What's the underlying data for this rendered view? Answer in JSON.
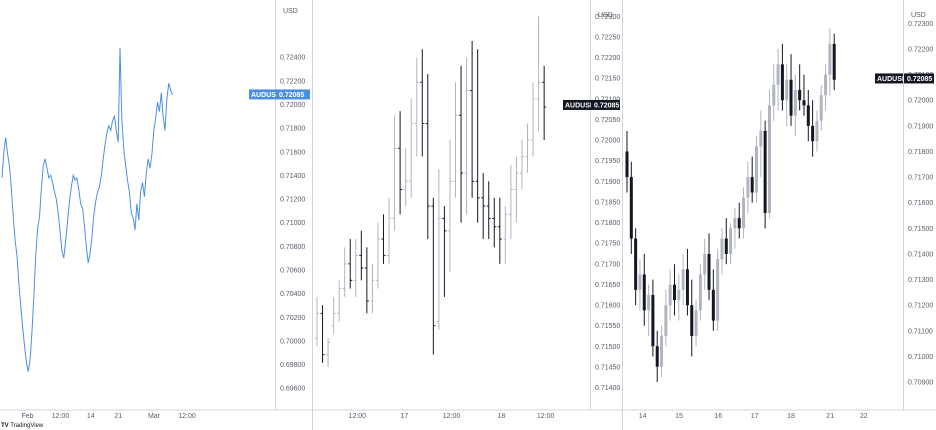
{
  "brand": {
    "logo_text": "TradingView"
  },
  "colors": {
    "blue": "#4a90e2",
    "dark": "#131722",
    "gray": "#b2b5be",
    "axis": "#555b66",
    "grid_line": "#d1d4dc"
  },
  "chart_data": [
    {
      "type": "line",
      "symbol": "AUDUSD",
      "currency": "USD",
      "last_price_label": "0.72085",
      "ylim": [
        0.695,
        0.7285
      ],
      "y_ticks": [
        "0.72400",
        "0.72200",
        "0.72000",
        "0.71800",
        "0.71600",
        "0.71400",
        "0.71200",
        "0.71000",
        "0.70800",
        "0.70600",
        "0.70400",
        "0.70200",
        "0.70000",
        "0.69800",
        "0.69600"
      ],
      "x_labels": [
        [
          "Feb",
          0.1
        ],
        [
          "12:00",
          0.22
        ],
        [
          "14",
          0.33
        ],
        [
          "21",
          0.43
        ],
        [
          "Mar",
          0.56
        ],
        [
          "12:00",
          0.68
        ]
      ],
      "values": [
        0.7138,
        0.716,
        0.7172,
        0.7158,
        0.7148,
        0.7128,
        0.7106,
        0.7085,
        0.7072,
        0.7048,
        0.703,
        0.7012,
        0.6996,
        0.6982,
        0.6974,
        0.6984,
        0.7008,
        0.7038,
        0.7072,
        0.7095,
        0.7105,
        0.7128,
        0.7148,
        0.7154,
        0.7146,
        0.7138,
        0.714,
        0.7134,
        0.7126,
        0.712,
        0.7108,
        0.7092,
        0.7076,
        0.707,
        0.7085,
        0.7102,
        0.7118,
        0.713,
        0.714,
        0.7136,
        0.7138,
        0.7128,
        0.7116,
        0.7112,
        0.7098,
        0.708,
        0.7066,
        0.7074,
        0.7088,
        0.7106,
        0.7118,
        0.7126,
        0.713,
        0.714,
        0.7154,
        0.7166,
        0.7176,
        0.7182,
        0.7178,
        0.7186,
        0.719,
        0.7178,
        0.7168,
        0.7248,
        0.7186,
        0.7162,
        0.7148,
        0.7136,
        0.7126,
        0.7108,
        0.7104,
        0.7094,
        0.7116,
        0.7102,
        0.7126,
        0.7134,
        0.7122,
        0.7142,
        0.7154,
        0.7146,
        0.7158,
        0.7178,
        0.7188,
        0.7202,
        0.7194,
        0.721,
        0.719,
        0.7178,
        0.7205,
        0.7218,
        0.7212,
        0.7208
      ]
    },
    {
      "type": "ohlc",
      "symbol": "AUDUSD",
      "currency": "USD",
      "last_price_label": "0.72085",
      "ylim": [
        0.7137,
        0.7232
      ],
      "y_ticks": [
        "0.72300",
        "0.72250",
        "0.72200",
        "0.72150",
        "0.72100",
        "0.72050",
        "0.72000",
        "0.71950",
        "0.71900",
        "0.71850",
        "0.71800",
        "0.71750",
        "0.71700",
        "0.71650",
        "0.71600",
        "0.71550",
        "0.71500",
        "0.71450",
        "0.71400"
      ],
      "x_labels": [
        [
          "12:00",
          0.16
        ],
        [
          "17",
          0.33
        ],
        [
          "12:00",
          0.5
        ],
        [
          "18",
          0.68
        ],
        [
          "12:00",
          0.84
        ]
      ],
      "bars": [
        [
          0.7152,
          0.7162,
          0.715,
          0.7158
        ],
        [
          0.7158,
          0.716,
          0.7146,
          0.7148
        ],
        [
          0.7148,
          0.7152,
          0.7145,
          0.7151
        ],
        [
          0.7155,
          0.7162,
          0.7153,
          0.7158
        ],
        [
          0.7158,
          0.7166,
          0.7156,
          0.7164
        ],
        [
          0.7164,
          0.7174,
          0.7162,
          0.717
        ],
        [
          0.717,
          0.7176,
          0.7164,
          0.7166
        ],
        [
          0.7166,
          0.7176,
          0.7162,
          0.7172
        ],
        [
          0.7172,
          0.7178,
          0.7166,
          0.7169
        ],
        [
          0.7169,
          0.7174,
          0.7158,
          0.7161
        ],
        [
          0.7161,
          0.717,
          0.7158,
          0.7166
        ],
        [
          0.7166,
          0.718,
          0.7164,
          0.7176
        ],
        [
          0.7176,
          0.7182,
          0.717,
          0.7172
        ],
        [
          0.7172,
          0.7186,
          0.717,
          0.7181
        ],
        [
          0.7181,
          0.7206,
          0.7178,
          0.7198
        ],
        [
          0.7198,
          0.7207,
          0.7182,
          0.7188
        ],
        [
          0.7188,
          0.7198,
          0.7184,
          0.719
        ],
        [
          0.719,
          0.721,
          0.7186,
          0.7204
        ],
        [
          0.7204,
          0.722,
          0.7196,
          0.7214
        ],
        [
          0.7214,
          0.7222,
          0.7196,
          0.7204
        ],
        [
          0.7204,
          0.7216,
          0.7176,
          0.7184
        ],
        [
          0.7184,
          0.7186,
          0.7148,
          0.7155
        ],
        [
          0.7156,
          0.7193,
          0.7154,
          0.7181
        ],
        [
          0.7181,
          0.7184,
          0.7162,
          0.7178
        ],
        [
          0.7178,
          0.72,
          0.7168,
          0.719
        ],
        [
          0.719,
          0.7214,
          0.7186,
          0.7206
        ],
        [
          0.7206,
          0.7218,
          0.718,
          0.7192
        ],
        [
          0.7192,
          0.722,
          0.7182,
          0.7212
        ],
        [
          0.7212,
          0.7224,
          0.7186,
          0.719
        ],
        [
          0.719,
          0.7222,
          0.718,
          0.7186
        ],
        [
          0.7186,
          0.7192,
          0.7176,
          0.7184
        ],
        [
          0.7184,
          0.719,
          0.7176,
          0.7181
        ],
        [
          0.7181,
          0.7186,
          0.7174,
          0.7179
        ],
        [
          0.7179,
          0.7186,
          0.717,
          0.7176
        ],
        [
          0.7176,
          0.7184,
          0.717,
          0.7182
        ],
        [
          0.7182,
          0.7194,
          0.7176,
          0.7188
        ],
        [
          0.7188,
          0.7196,
          0.718,
          0.7192
        ],
        [
          0.7192,
          0.72,
          0.7188,
          0.7196
        ],
        [
          0.7196,
          0.7204,
          0.7192,
          0.72
        ],
        [
          0.72,
          0.7214,
          0.7196,
          0.721
        ],
        [
          0.721,
          0.723,
          0.7202,
          0.7214
        ],
        [
          0.7214,
          0.7218,
          0.72,
          0.7208
        ]
      ]
    },
    {
      "type": "candlestick",
      "symbol": "AUDUSD",
      "currency": "USD",
      "last_price_label": "0.72085",
      "ylim": [
        0.7083,
        0.7236
      ],
      "y_ticks": [
        "0.72300",
        "0.72200",
        "0.72100",
        "0.72000",
        "0.71900",
        "0.71800",
        "0.71700",
        "0.71600",
        "0.71500",
        "0.71400",
        "0.71300",
        "0.71200",
        "0.71100",
        "0.71000",
        "0.70900"
      ],
      "x_labels": [
        [
          "14",
          0.07
        ],
        [
          "15",
          0.2
        ],
        [
          "16",
          0.34
        ],
        [
          "17",
          0.47
        ],
        [
          "18",
          0.6
        ],
        [
          "21",
          0.74
        ],
        [
          "22",
          0.86
        ]
      ],
      "candles": [
        [
          0.718,
          0.7188,
          0.7164,
          0.717
        ],
        [
          0.717,
          0.7176,
          0.714,
          0.7146
        ],
        [
          0.7146,
          0.715,
          0.712,
          0.7126
        ],
        [
          0.7126,
          0.7138,
          0.7118,
          0.7132
        ],
        [
          0.7132,
          0.714,
          0.7112,
          0.7118
        ],
        [
          0.7118,
          0.7128,
          0.7108,
          0.7124
        ],
        [
          0.7124,
          0.713,
          0.71,
          0.7104
        ],
        [
          0.7104,
          0.711,
          0.709,
          0.7096
        ],
        [
          0.7096,
          0.7112,
          0.7092,
          0.7108
        ],
        [
          0.7108,
          0.7126,
          0.7104,
          0.712
        ],
        [
          0.712,
          0.7134,
          0.7114,
          0.7128
        ],
        [
          0.7128,
          0.7136,
          0.7116,
          0.7122
        ],
        [
          0.7122,
          0.7132,
          0.7114,
          0.7126
        ],
        [
          0.7126,
          0.714,
          0.712,
          0.7134
        ],
        [
          0.7134,
          0.7142,
          0.7116,
          0.712
        ],
        [
          0.712,
          0.713,
          0.71,
          0.7108
        ],
        [
          0.7108,
          0.7122,
          0.7104,
          0.7118
        ],
        [
          0.7118,
          0.7136,
          0.7114,
          0.7132
        ],
        [
          0.7132,
          0.7146,
          0.7126,
          0.714
        ],
        [
          0.714,
          0.7148,
          0.7122,
          0.7126
        ],
        [
          0.7126,
          0.7134,
          0.711,
          0.7114
        ],
        [
          0.7114,
          0.7142,
          0.711,
          0.7138
        ],
        [
          0.7138,
          0.715,
          0.7132,
          0.7146
        ],
        [
          0.7146,
          0.7154,
          0.7136,
          0.714
        ],
        [
          0.714,
          0.7152,
          0.7136,
          0.715
        ],
        [
          0.715,
          0.7158,
          0.7142,
          0.7154
        ],
        [
          0.7154,
          0.716,
          0.7146,
          0.715
        ],
        [
          0.715,
          0.7166,
          0.7146,
          0.7162
        ],
        [
          0.7162,
          0.7176,
          0.7156,
          0.717
        ],
        [
          0.717,
          0.7178,
          0.716,
          0.7164
        ],
        [
          0.7164,
          0.7186,
          0.716,
          0.7182
        ],
        [
          0.7182,
          0.7196,
          0.717,
          0.7188
        ],
        [
          0.7188,
          0.7192,
          0.715,
          0.7156
        ],
        [
          0.7156,
          0.7204,
          0.7154,
          0.7198
        ],
        [
          0.7198,
          0.7214,
          0.7192,
          0.7206
        ],
        [
          0.7206,
          0.722,
          0.7196,
          0.7214
        ],
        [
          0.7214,
          0.7222,
          0.7196,
          0.72
        ],
        [
          0.72,
          0.7214,
          0.719,
          0.7208
        ],
        [
          0.7208,
          0.7218,
          0.719,
          0.7194
        ],
        [
          0.7194,
          0.721,
          0.7186,
          0.7204
        ],
        [
          0.7204,
          0.7214,
          0.7196,
          0.72
        ],
        [
          0.72,
          0.721,
          0.7194,
          0.7198
        ],
        [
          0.7198,
          0.7204,
          0.7184,
          0.719
        ],
        [
          0.719,
          0.72,
          0.7178,
          0.7184
        ],
        [
          0.7184,
          0.7196,
          0.718,
          0.7192
        ],
        [
          0.7192,
          0.7206,
          0.7188,
          0.7202
        ],
        [
          0.7202,
          0.7214,
          0.7196,
          0.721
        ],
        [
          0.721,
          0.7228,
          0.7202,
          0.7222
        ],
        [
          0.7222,
          0.7226,
          0.7204,
          0.7208
        ]
      ]
    }
  ]
}
